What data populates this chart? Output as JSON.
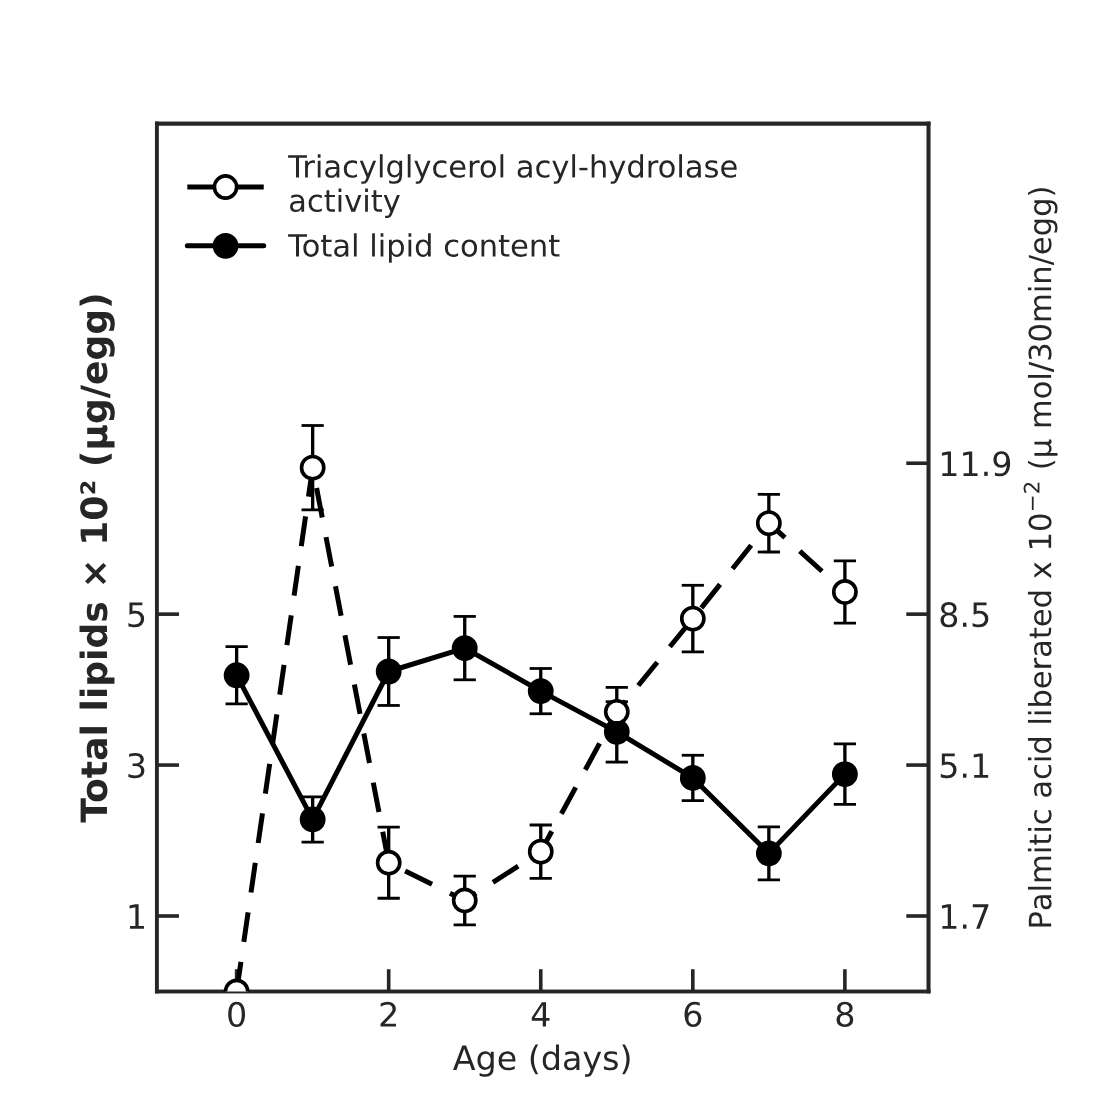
{
  "chart_data": {
    "type": "line",
    "xlabel": "Age (days)",
    "ylabel": "Total lipids × 10² (µg/egg)",
    "y2label": "Palmitic acid liberated x 10$^{−2}$ (µ mol/30min/egg)",
    "x": [
      0,
      1,
      2,
      3,
      4,
      5,
      6,
      7,
      8
    ],
    "series": [
      {
        "name": "Triacylglycerol acyl-hydrolase\nactivity",
        "color": "#000000",
        "axis": "y2",
        "marker": "circle",
        "line_style": "dashed",
        "values": [
          0,
          11.8,
          2.9,
          2.05,
          3.15,
          6.3,
          8.4,
          10.55,
          9.0
        ],
        "errors": [
          null,
          0.95,
          0.8,
          0.55,
          0.6,
          0.55,
          0.75,
          0.65,
          0.7
        ]
      },
      {
        "name": "Total lipid content",
        "color": "#000000",
        "axis": "y",
        "marker": "circle",
        "line_style": "solid",
        "values": [
          4.19,
          2.28,
          4.24,
          4.55,
          3.98,
          3.44,
          2.83,
          1.83,
          2.88
        ],
        "errors": [
          0.38,
          0.3,
          0.45,
          0.42,
          0.3,
          0.4,
          0.3,
          0.35,
          0.4
        ]
      }
    ],
    "xlim": [
      -1.05,
      9.1
    ],
    "xticks": [
      0,
      2,
      4,
      6,
      8
    ],
    "ylim": [
      0,
      11.5
    ],
    "yticks": [
      1,
      3,
      5
    ],
    "y2lim": [
      0,
      19.55
    ],
    "y2ticks": [
      1.7,
      5.1,
      8.5,
      11.9
    ],
    "legend": "top left",
    "grid": false
  }
}
